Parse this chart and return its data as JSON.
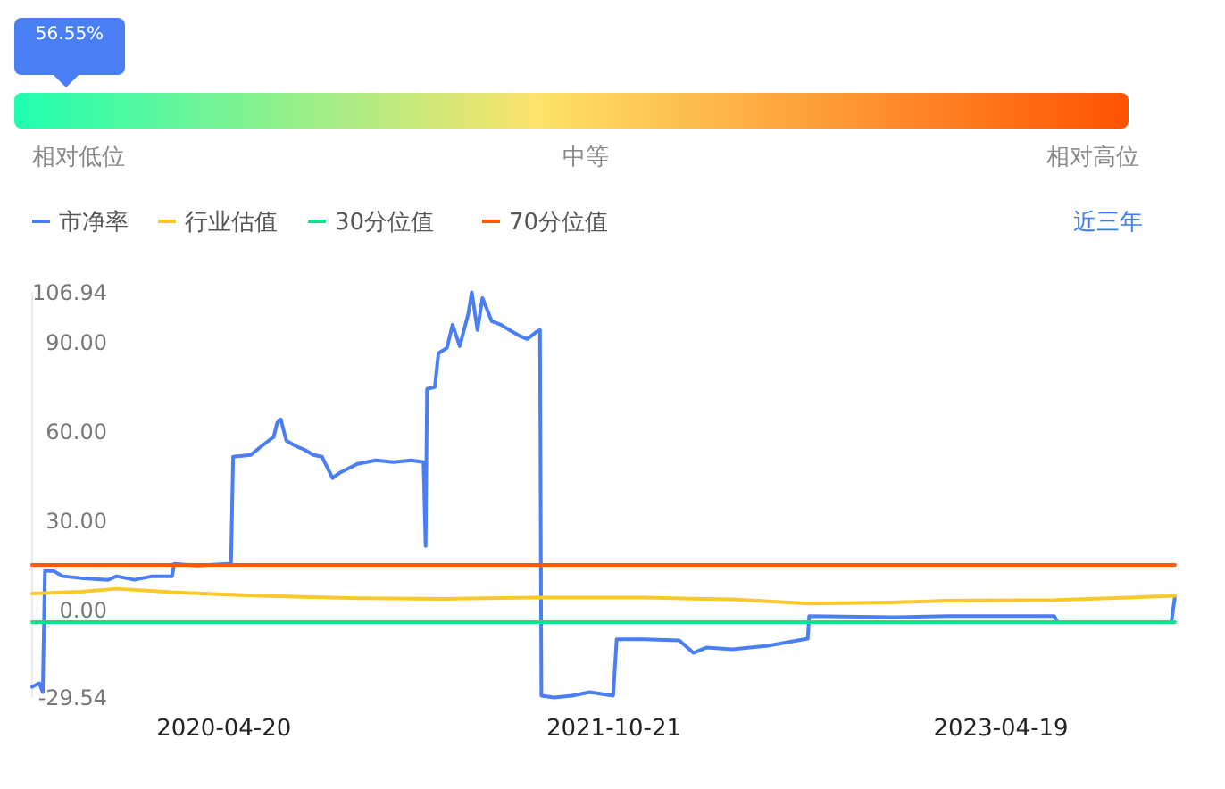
{
  "chart_data": [
    {
      "type": "other",
      "annotations": [
        "56.55%",
        "相对低位",
        "中等",
        "相对高位"
      ]
    },
    {
      "type": "line",
      "legend": "top left",
      "annotations": [
        "近三年"
      ],
      "xlim": [
        "2019-07-25",
        "2023-12-20"
      ],
      "xticks": [
        "2020-04-20",
        "2021-10-21",
        "2023-04-19"
      ],
      "ylim": [
        -29.54,
        106.94
      ],
      "yticks": [
        {
          "value": -29.54,
          "label": "-29.54"
        },
        {
          "value": 0,
          "label": "0.00"
        },
        {
          "value": 30,
          "label": "30.00"
        },
        {
          "value": 60,
          "label": "60.00"
        },
        {
          "value": 90,
          "label": "90.00"
        },
        {
          "value": 106.94,
          "label": "106.94"
        }
      ],
      "grid": false,
      "marker": "none",
      "line_style": "solid",
      "series": [
        {
          "name": "市净率",
          "color": "#4a7ef5",
          "x": [
            "2019-07-25",
            "2019-08-04",
            "2019-08-09",
            "2019-08-12",
            "2019-08-24",
            "2019-09-06",
            "2019-10-01",
            "2019-11-09",
            "2019-11-21",
            "2019-12-16",
            "2020-01-10",
            "2020-02-07",
            "2020-02-10",
            "2020-03-13",
            "2020-04-30",
            "2020-05-03",
            "2020-05-28",
            "2020-06-09",
            "2020-06-22",
            "2020-06-29",
            "2020-07-04",
            "2020-07-09",
            "2020-07-17",
            "2020-07-30",
            "2020-08-11",
            "2020-08-24",
            "2020-09-05",
            "2020-09-20",
            "2020-09-30",
            "2020-10-25",
            "2020-11-20",
            "2020-12-15",
            "2021-01-09",
            "2021-01-26",
            "2021-01-29",
            "2021-01-31",
            "2021-02-11",
            "2021-02-16",
            "2021-02-28",
            "2021-03-08",
            "2021-03-18",
            "2021-03-30",
            "2021-04-04",
            "2021-04-12",
            "2021-04-19",
            "2021-05-02",
            "2021-05-15",
            "2021-05-27",
            "2021-06-09",
            "2021-06-21",
            "2021-07-04",
            "2021-07-09",
            "2021-07-11",
            "2021-07-29",
            "2021-08-23",
            "2021-09-17",
            "2021-10-20",
            "2021-10-25",
            "2021-12-02",
            "2022-01-21",
            "2022-02-10",
            "2022-02-28",
            "2022-04-06",
            "2022-05-26",
            "2022-07-21",
            "2022-07-23",
            "2022-11-18",
            "2023-02-02",
            "2023-07-03",
            "2023-07-08",
            "2023-12-15",
            "2023-12-20"
          ],
          "values": [
            -25.8,
            -24.6,
            -27.6,
            13.2,
            13.2,
            11.4,
            10.8,
            10.2,
            11.4,
            10.2,
            11.4,
            11.4,
            15.6,
            15.0,
            15.6,
            51.6,
            52.2,
            54.6,
            57,
            58.2,
            63,
            64.2,
            57,
            55.2,
            54,
            52.2,
            51.6,
            44.4,
            46.2,
            49.2,
            50.4,
            49.8,
            50.4,
            49.8,
            21.6,
            74.4,
            75,
            86.4,
            88.2,
            96,
            88.8,
            99.6,
            106.9,
            94.2,
            105,
            97.2,
            96,
            94.2,
            92.4,
            91.2,
            93.6,
            94.2,
            -28.8,
            -29.4,
            -28.8,
            -27.6,
            -28.8,
            -9.8,
            -9.8,
            -10.2,
            -14.4,
            -12.6,
            -13.2,
            -12,
            -9.6,
            -2,
            -2.4,
            -2,
            -2,
            -4.0,
            -4.0,
            4.8
          ]
        },
        {
          "name": "行业估值",
          "color": "#f9c82a",
          "x": [
            "2019-07-25",
            "2019-10-01",
            "2019-11-21",
            "2020-02-07",
            "2020-06-09",
            "2020-10-25",
            "2021-02-28",
            "2021-07-04",
            "2021-12-02",
            "2022-04-06",
            "2022-07-23",
            "2022-11-18",
            "2023-02-02",
            "2023-07-03",
            "2023-12-20"
          ],
          "values": [
            5.6,
            6.2,
            7.2,
            6.0,
            4.8,
            4.0,
            3.8,
            4.2,
            4.2,
            3.6,
            2.2,
            2.6,
            3.2,
            3.4,
            4.8
          ]
        },
        {
          "name": "30分位值",
          "color": "#1adf8a",
          "x": [
            "2019-07-25",
            "2023-12-20"
          ],
          "values": [
            -4.0,
            -4.0
          ]
        },
        {
          "name": "70分位值",
          "color": "#ff5a00",
          "x": [
            "2019-07-25",
            "2023-12-20"
          ],
          "values": [
            15.2,
            15.2
          ]
        }
      ]
    }
  ]
}
